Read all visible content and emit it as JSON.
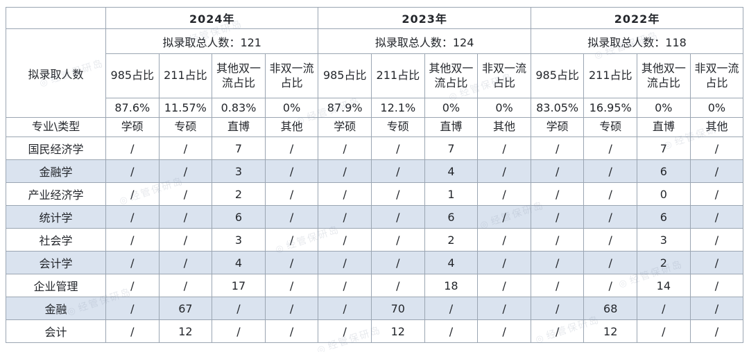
{
  "watermark": {
    "text": "经管保研岛",
    "logo_icon": "◎"
  },
  "colors": {
    "header_bg": "#1F4480",
    "header_text": "#FFFFFF",
    "band_bg": "#DAE3EF",
    "border": "#9AA5B2",
    "label_text": "#1F3150",
    "value_text": "#1F2329"
  },
  "chart_data": {
    "type": "table",
    "corner_label": "拟录取人数",
    "type_label": "专业\\类型",
    "ratio_headers": [
      "985占比",
      "211占比",
      "其他双一流占比",
      "非双一流占比"
    ],
    "type_headers": [
      "学硕",
      "专硕",
      "直博",
      "其他"
    ],
    "years": [
      {
        "label": "2024年",
        "total": 121,
        "total_label": "拟录取总人数：121",
        "ratios": [
          "87.6%",
          "11.57%",
          "0.83%",
          "0%"
        ]
      },
      {
        "label": "2023年",
        "total": 124,
        "total_label": "拟录取总人数：124",
        "ratios": [
          "87.9%",
          "12.1%",
          "0%",
          "0%"
        ]
      },
      {
        "label": "2022年",
        "total": 118,
        "total_label": "拟录取总人数：118",
        "ratios": [
          "83.05%",
          "16.95%",
          "0%",
          "0%"
        ]
      }
    ],
    "rows": [
      {
        "subject": "国民经济学",
        "values": [
          [
            "/",
            "/",
            "7",
            "/"
          ],
          [
            "/",
            "/",
            "7",
            "/"
          ],
          [
            "/",
            "/",
            "7",
            "/"
          ]
        ]
      },
      {
        "subject": "金融学",
        "values": [
          [
            "/",
            "/",
            "3",
            "/"
          ],
          [
            "/",
            "/",
            "4",
            "/"
          ],
          [
            "/",
            "/",
            "6",
            "/"
          ]
        ]
      },
      {
        "subject": "产业经济学",
        "values": [
          [
            "/",
            "/",
            "2",
            "/"
          ],
          [
            "/",
            "/",
            "1",
            "/"
          ],
          [
            "/",
            "/",
            "0",
            "/"
          ]
        ]
      },
      {
        "subject": "统计学",
        "values": [
          [
            "/",
            "/",
            "6",
            "/"
          ],
          [
            "/",
            "/",
            "6",
            "/"
          ],
          [
            "/",
            "/",
            "6",
            "/"
          ]
        ]
      },
      {
        "subject": "社会学",
        "values": [
          [
            "/",
            "/",
            "3",
            "/"
          ],
          [
            "/",
            "/",
            "2",
            "/"
          ],
          [
            "/",
            "/",
            "3",
            "/"
          ]
        ]
      },
      {
        "subject": "会计学",
        "values": [
          [
            "/",
            "/",
            "4",
            "/"
          ],
          [
            "/",
            "/",
            "4",
            "/"
          ],
          [
            "/",
            "/",
            "2",
            "/"
          ]
        ]
      },
      {
        "subject": "企业管理",
        "values": [
          [
            "/",
            "/",
            "17",
            "/"
          ],
          [
            "/",
            "/",
            "18",
            "/"
          ],
          [
            "/",
            "/",
            "14",
            "/"
          ]
        ]
      },
      {
        "subject": "金融",
        "values": [
          [
            "/",
            "67",
            "/",
            "/"
          ],
          [
            "/",
            "70",
            "/",
            "/"
          ],
          [
            "/",
            "68",
            "/",
            "/"
          ]
        ]
      },
      {
        "subject": "会计",
        "values": [
          [
            "/",
            "12",
            "/",
            "/"
          ],
          [
            "/",
            "12",
            "/",
            "/"
          ],
          [
            "/",
            "12",
            "/",
            "/"
          ]
        ]
      }
    ]
  }
}
